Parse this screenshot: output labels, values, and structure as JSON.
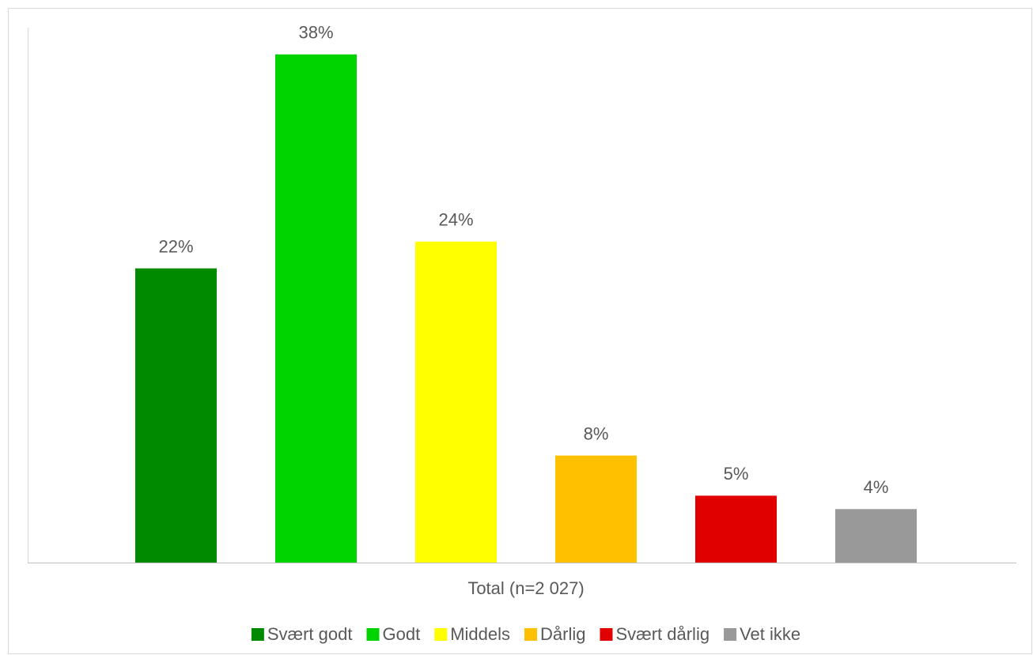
{
  "chart_data": {
    "type": "bar",
    "categories": [
      "Total (n=2 027)"
    ],
    "ylim": [
      0,
      40
    ],
    "legend": "bottom",
    "series": [
      {
        "name": "Svært godt",
        "color": "#008a00",
        "values": [
          22
        ],
        "value_labels": [
          "22%"
        ]
      },
      {
        "name": "Godt",
        "color": "#00d400",
        "values": [
          38
        ],
        "value_labels": [
          "38%"
        ]
      },
      {
        "name": "Middels",
        "color": "#ffff00",
        "values": [
          24
        ],
        "value_labels": [
          "24%"
        ]
      },
      {
        "name": "Dårlig",
        "color": "#ffc000",
        "values": [
          8
        ],
        "value_labels": [
          "8%"
        ]
      },
      {
        "name": "Svært dårlig",
        "color": "#e00000",
        "values": [
          5
        ],
        "value_labels": [
          "5%"
        ]
      },
      {
        "name": "Vet ikke",
        "color": "#999999",
        "values": [
          4
        ],
        "value_labels": [
          "4%"
        ]
      }
    ]
  }
}
